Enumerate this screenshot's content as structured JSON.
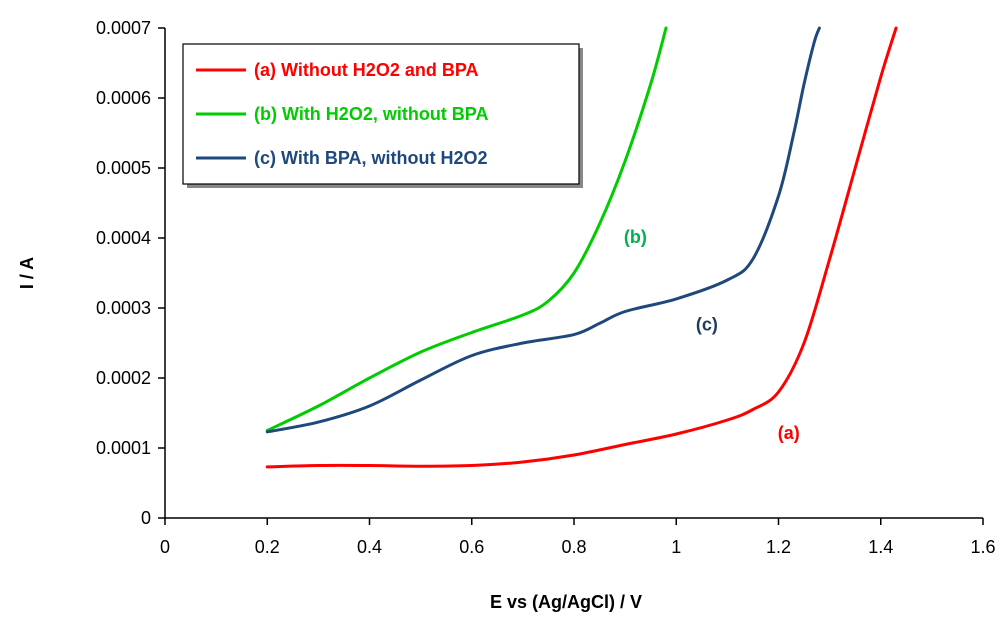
{
  "chart_data": {
    "type": "line",
    "xlabel": "E vs (Ag/AgCl) / V",
    "ylabel": "I / A",
    "xlim": [
      0,
      1.6
    ],
    "ylim": [
      0,
      0.0007
    ],
    "x_ticks": [
      "0",
      "0.2",
      "0.4",
      "0.6",
      "0.8",
      "1",
      "1.2",
      "1.4",
      "1.6"
    ],
    "y_ticks": [
      "0",
      "0.0001",
      "0.0002",
      "0.0003",
      "0.0004",
      "0.0005",
      "0.0006",
      "0.0007"
    ],
    "grid": false,
    "legend_position": "top-left",
    "series": [
      {
        "name": "(a) Without H2O2 and BPA",
        "color": "#ff0000",
        "x": [
          0.2,
          0.3,
          0.4,
          0.5,
          0.6,
          0.7,
          0.8,
          0.9,
          1.0,
          1.1,
          1.15,
          1.2,
          1.25,
          1.3,
          1.35,
          1.4,
          1.43
        ],
        "y": [
          7.3e-05,
          7.5e-05,
          7.5e-05,
          7.4e-05,
          7.5e-05,
          8e-05,
          9e-05,
          0.000105,
          0.00012,
          0.00014,
          0.000155,
          0.00018,
          0.00025,
          0.00037,
          0.0005,
          0.00063,
          0.0007
        ]
      },
      {
        "name": "(b) With H2O2, without BPA",
        "color": "#00cc00",
        "x": [
          0.2,
          0.3,
          0.4,
          0.5,
          0.6,
          0.7,
          0.75,
          0.8,
          0.85,
          0.9,
          0.95,
          0.98
        ],
        "y": [
          0.000125,
          0.00016,
          0.0002,
          0.000237,
          0.000265,
          0.00029,
          0.00031,
          0.00035,
          0.00042,
          0.00051,
          0.00062,
          0.0007
        ]
      },
      {
        "name": "(c) With BPA, without H2O2",
        "color": "#1f497d",
        "x": [
          0.2,
          0.3,
          0.4,
          0.5,
          0.6,
          0.7,
          0.8,
          0.85,
          0.9,
          1.0,
          1.1,
          1.15,
          1.2,
          1.23,
          1.25,
          1.27,
          1.28
        ],
        "y": [
          0.000123,
          0.000137,
          0.00016,
          0.000197,
          0.000232,
          0.00025,
          0.000262,
          0.000278,
          0.000295,
          0.000313,
          0.00034,
          0.00037,
          0.00046,
          0.00055,
          0.00062,
          0.00068,
          0.0007
        ]
      }
    ],
    "annotations": [
      {
        "text": "(a)",
        "x": 1.22,
        "y": 0.000113,
        "color": "#ff0000"
      },
      {
        "text": "(b)",
        "x": 0.92,
        "y": 0.000393,
        "color": "#00b050"
      },
      {
        "text": "(c)",
        "x": 1.06,
        "y": 0.000268,
        "color": "#1f3a5f"
      }
    ]
  }
}
